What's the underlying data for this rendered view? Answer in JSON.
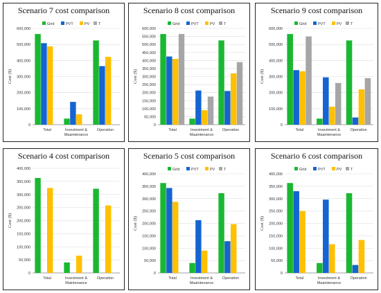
{
  "colors": {
    "Grid": "#1ab832",
    "PVT": "#1464d2",
    "PV": "#ffc000",
    "T": "#a6a6a6"
  },
  "chart_data": [
    {
      "type": "bar",
      "title": "Scenario 7 cost comparison",
      "ylabel": "Cost ($)",
      "categories": [
        "Total",
        "Investment & Maaintenance",
        "Operation"
      ],
      "ylim": [
        0,
        600000
      ],
      "yticks": [
        "0",
        "100,000",
        "200,000",
        "300,000",
        "400,000",
        "500,000",
        "600,000"
      ],
      "legend_visible": true,
      "series": [
        {
          "name": "Grid",
          "values": [
            565000,
            38000,
            525000
          ]
        },
        {
          "name": "PVT",
          "values": [
            508000,
            142000,
            365000
          ]
        },
        {
          "name": "PV",
          "values": [
            488000,
            65000,
            423000
          ]
        },
        {
          "name": "T",
          "values": [
            0,
            0,
            0
          ]
        }
      ]
    },
    {
      "type": "bar",
      "title": "Scenario 8 cost comparison",
      "ylabel": "Cost ($)",
      "categories": [
        "Total",
        "Investment & Maaintenance",
        "Operation"
      ],
      "ylim": [
        0,
        600000
      ],
      "yticks": [
        "0",
        "50,000",
        "100,000",
        "150,000",
        "200,000",
        "250,000",
        "300,000",
        "350,000",
        "400,000",
        "450,000",
        "500,000",
        "550,000",
        "600,000"
      ],
      "legend_visible": true,
      "series": [
        {
          "name": "Grid",
          "values": [
            565000,
            38000,
            525000
          ]
        },
        {
          "name": "PVT",
          "values": [
            425000,
            213000,
            210000
          ]
        },
        {
          "name": "PV",
          "values": [
            410000,
            90000,
            320000
          ]
        },
        {
          "name": "T",
          "values": [
            565000,
            175000,
            390000
          ]
        }
      ]
    },
    {
      "type": "bar",
      "title": "Scenario 9 cost comparison",
      "ylabel": "Cost ($)",
      "categories": [
        "Total",
        "Investment & Maaintenance",
        "Operation"
      ],
      "ylim": [
        0,
        600000
      ],
      "yticks": [
        "0",
        "100,000",
        "200,000",
        "300,000",
        "400,000",
        "500,000",
        "600,000"
      ],
      "legend_visible": true,
      "series": [
        {
          "name": "Grid",
          "values": [
            565000,
            38000,
            525000
          ]
        },
        {
          "name": "PVT",
          "values": [
            340000,
            295000,
            45000
          ]
        },
        {
          "name": "PV",
          "values": [
            333000,
            112000,
            220000
          ]
        },
        {
          "name": "T",
          "values": [
            550000,
            260000,
            290000
          ]
        }
      ]
    },
    {
      "type": "bar",
      "title": "Scenario 4 cost comparison",
      "ylabel": "Cost ($)",
      "categories": [
        "Total",
        "Investment & Maintenance",
        "Operation"
      ],
      "ylim": [
        0,
        400000
      ],
      "yticks": [
        "0",
        "50,000",
        "100,000",
        "150,000",
        "200,000",
        "250,000",
        "300,000",
        "350,000",
        "400,000"
      ],
      "legend_visible": false,
      "series": [
        {
          "name": "Grid",
          "values": [
            363000,
            40000,
            322000
          ]
        },
        {
          "name": "PVT",
          "values": [
            0,
            0,
            0
          ]
        },
        {
          "name": "PV",
          "values": [
            325000,
            66000,
            258000
          ]
        },
        {
          "name": "T",
          "values": [
            0,
            0,
            0
          ]
        }
      ]
    },
    {
      "type": "bar",
      "title": "Scenario 5 cost comparison",
      "ylabel": "Cost ($)",
      "categories": [
        "Total",
        "Investment & Maaintenance",
        "Operation"
      ],
      "ylim": [
        0,
        400000
      ],
      "yticks": [
        "0",
        "50,000",
        "100,000",
        "150,000",
        "200,000",
        "250,000",
        "300,000",
        "350,000",
        "400,000"
      ],
      "legend_visible": true,
      "series": [
        {
          "name": "Grid",
          "values": [
            363000,
            40000,
            322000
          ]
        },
        {
          "name": "PVT",
          "values": [
            343000,
            213000,
            128000
          ]
        },
        {
          "name": "PV",
          "values": [
            287000,
            90000,
            197000
          ]
        },
        {
          "name": "T",
          "values": [
            0,
            0,
            0
          ]
        }
      ]
    },
    {
      "type": "bar",
      "title": "Scenario 6 cost comparison",
      "ylabel": "Cost ($)",
      "categories": [
        "Total",
        "Investment & Maaintenance",
        "Operation"
      ],
      "ylim": [
        0,
        400000
      ],
      "yticks": [
        "0",
        "50,000",
        "100,000",
        "150,000",
        "200,000",
        "250,000",
        "300,000",
        "350,000",
        "400,000"
      ],
      "legend_visible": true,
      "series": [
        {
          "name": "Grid",
          "values": [
            363000,
            40000,
            322000
          ]
        },
        {
          "name": "PVT",
          "values": [
            330000,
            296000,
            32000
          ]
        },
        {
          "name": "PV",
          "values": [
            250000,
            116000,
            133000
          ]
        },
        {
          "name": "T",
          "values": [
            0,
            0,
            0
          ]
        }
      ]
    }
  ]
}
